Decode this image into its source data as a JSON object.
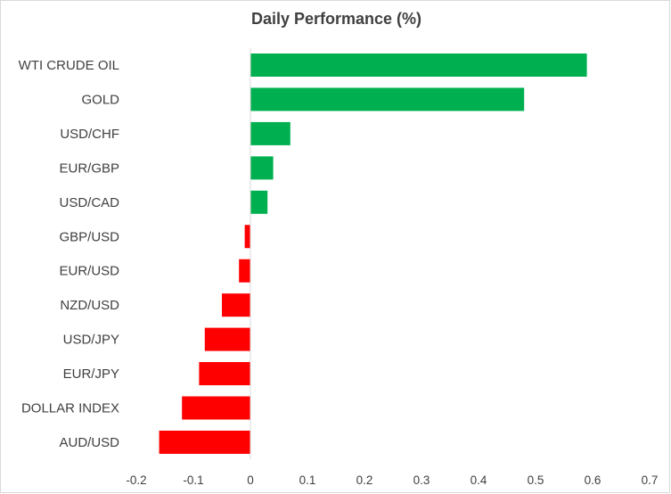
{
  "chart_data": {
    "type": "bar",
    "orientation": "horizontal",
    "title": "Daily Performance (%)",
    "xlabel": "",
    "ylabel": "",
    "categories": [
      "WTI CRUDE OIL",
      "GOLD",
      "USD/CHF",
      "EUR/GBP",
      "USD/CAD",
      "GBP/USD",
      "EUR/USD",
      "NZD/USD",
      "USD/JPY",
      "EUR/JPY",
      "DOLLAR INDEX",
      "AUD/USD"
    ],
    "values": [
      0.59,
      0.48,
      0.07,
      0.04,
      0.03,
      -0.01,
      -0.02,
      -0.05,
      -0.08,
      -0.09,
      -0.12,
      -0.16
    ],
    "xlim": [
      -0.2,
      0.7
    ],
    "xticks": [
      "-0.2",
      "-0.1",
      "0",
      "0.1",
      "0.2",
      "0.3",
      "0.4",
      "0.5",
      "0.6",
      "0.7"
    ],
    "xtick_values": [
      -0.2,
      -0.1,
      0,
      0.1,
      0.2,
      0.3,
      0.4,
      0.5,
      0.6,
      0.7
    ],
    "grid": false,
    "legend": "none",
    "colors": {
      "positive": "#00b050",
      "negative": "#ff0000",
      "zero_line": "#d9d9d9",
      "text": "#404040"
    }
  }
}
